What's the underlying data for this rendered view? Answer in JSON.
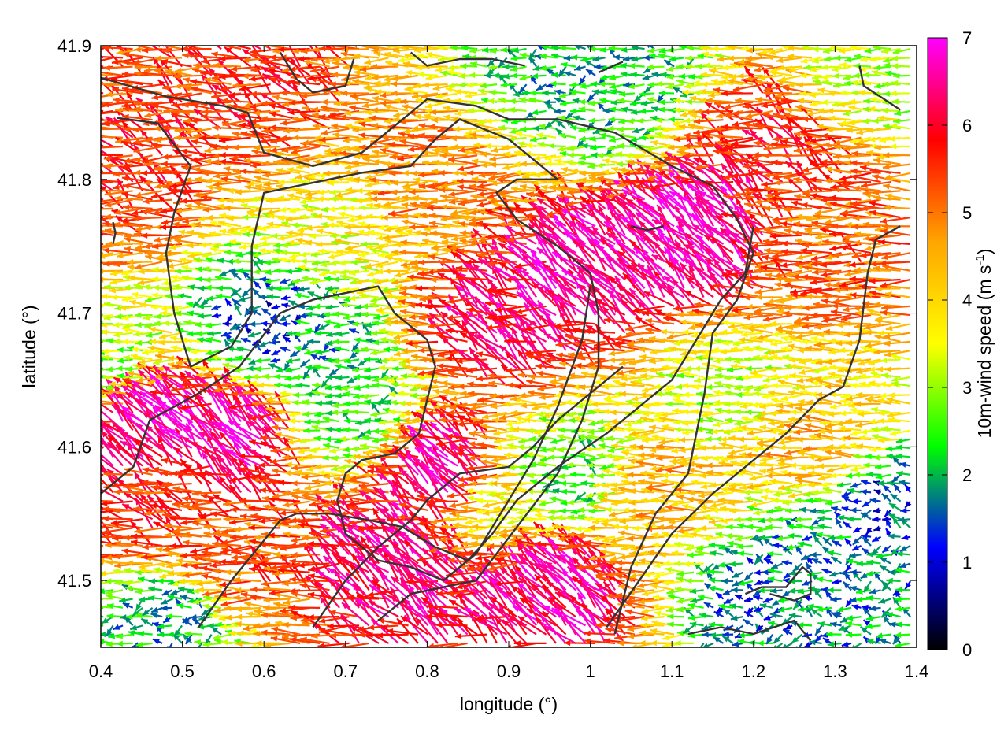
{
  "chart_data": {
    "type": "vector-field",
    "xlabel": "longitude (°)",
    "ylabel": "latitude (°)",
    "xlim": [
      0.4,
      1.4
    ],
    "ylim": [
      41.45,
      41.9
    ],
    "xticks": [
      "0.4",
      "0.5",
      "0.6",
      "0.7",
      "0.8",
      "0.9",
      "1",
      "1.1",
      "1.2",
      "1.3",
      "1.4"
    ],
    "yticks": [
      "41.5",
      "41.6",
      "41.7",
      "41.8",
      "41.9"
    ],
    "colorbar": {
      "label": "10m-wind speed (m s",
      "label_sup": "-1",
      "label_end": ")",
      "range": [
        0,
        7
      ],
      "ticks": [
        "0",
        "1",
        "2",
        "3",
        "4",
        "5",
        "6",
        "7"
      ],
      "palette": [
        "#000000",
        "#0000ff",
        "#00ff00",
        "#ffff00",
        "#ffa500",
        "#ff0000",
        "#ff00ff"
      ]
    },
    "grid": false,
    "legend": "none",
    "wind_field": {
      "prevailing_direction": "from east (vectors point west)",
      "speed_regions": [
        {
          "lon": 0.47,
          "lat": 41.62,
          "speed": 6.8
        },
        {
          "lon": 0.57,
          "lat": 41.61,
          "speed": 6.6
        },
        {
          "lon": 0.84,
          "lat": 41.58,
          "speed": 6.5
        },
        {
          "lon": 1.14,
          "lat": 41.76,
          "speed": 6.8
        },
        {
          "lon": 1.02,
          "lat": 41.73,
          "speed": 6.6
        },
        {
          "lon": 0.9,
          "lat": 41.69,
          "speed": 6.2
        },
        {
          "lon": 0.96,
          "lat": 41.49,
          "speed": 6.5
        },
        {
          "lon": 0.77,
          "lat": 41.51,
          "speed": 6.4
        },
        {
          "lon": 0.45,
          "lat": 41.8,
          "speed": 5.6
        },
        {
          "lon": 0.6,
          "lat": 41.86,
          "speed": 5.5
        },
        {
          "lon": 0.82,
          "lat": 41.8,
          "speed": 4.9
        },
        {
          "lon": 1.22,
          "lat": 41.82,
          "speed": 5.7
        },
        {
          "lon": 1.3,
          "lat": 41.76,
          "speed": 5.2
        },
        {
          "lon": 1.28,
          "lat": 41.6,
          "speed": 4.4
        },
        {
          "lon": 1.1,
          "lat": 41.57,
          "speed": 4.5
        },
        {
          "lon": 0.6,
          "lat": 41.52,
          "speed": 5.3
        },
        {
          "lon": 0.7,
          "lat": 41.76,
          "speed": 3.6
        },
        {
          "lon": 0.72,
          "lat": 41.63,
          "speed": 2.4
        },
        {
          "lon": 0.66,
          "lat": 41.68,
          "speed": 2.0
        },
        {
          "lon": 0.99,
          "lat": 41.88,
          "speed": 2.0
        },
        {
          "lon": 1.05,
          "lat": 41.86,
          "speed": 2.2
        },
        {
          "lon": 1.23,
          "lat": 41.49,
          "speed": 1.6
        },
        {
          "lon": 1.32,
          "lat": 41.52,
          "speed": 1.8
        },
        {
          "lon": 1.37,
          "lat": 41.55,
          "speed": 1.3
        },
        {
          "lon": 0.48,
          "lat": 41.47,
          "speed": 2.0
        },
        {
          "lon": 0.62,
          "lat": 41.69,
          "speed": 1.3
        },
        {
          "lon": 1.18,
          "lat": 41.64,
          "speed": 3.2
        },
        {
          "lon": 0.42,
          "lat": 41.66,
          "speed": 3.0
        },
        {
          "lon": 0.98,
          "lat": 41.58,
          "speed": 2.5
        },
        {
          "lon": 0.9,
          "lat": 41.56,
          "speed": 3.8
        },
        {
          "lon": 1.38,
          "lat": 41.88,
          "speed": 3.2
        },
        {
          "lon": 0.47,
          "lat": 41.55,
          "speed": 5.6
        }
      ]
    },
    "contours": [
      [
        [
          0.4,
          41.876
        ],
        [
          0.48,
          41.862
        ],
        [
          0.55,
          41.855
        ],
        [
          0.58,
          41.85
        ],
        [
          0.6,
          41.82
        ],
        [
          0.66,
          41.81
        ],
        [
          0.72,
          41.82
        ],
        [
          0.76,
          41.84
        ],
        [
          0.8,
          41.86
        ],
        [
          0.86,
          41.855
        ],
        [
          0.9,
          41.845
        ],
        [
          0.96,
          41.845
        ],
        [
          1.03,
          41.835
        ],
        [
          1.1,
          41.81
        ],
        [
          1.15,
          41.795
        ],
        [
          1.18,
          41.77
        ],
        [
          1.2,
          41.745
        ],
        [
          1.18,
          41.71
        ],
        [
          1.15,
          41.685
        ],
        [
          1.14,
          41.64
        ],
        [
          1.12,
          41.58
        ],
        [
          1.08,
          41.55
        ],
        [
          1.05,
          41.51
        ],
        [
          1.03,
          41.46
        ]
      ],
      [
        [
          0.42,
          41.846
        ],
        [
          0.47,
          41.842
        ],
        [
          0.51,
          41.81
        ],
        [
          0.49,
          41.775
        ],
        [
          0.48,
          41.745
        ],
        [
          0.49,
          41.7
        ],
        [
          0.51,
          41.66
        ],
        [
          0.56,
          41.675
        ],
        [
          0.585,
          41.7
        ],
        [
          0.585,
          41.75
        ],
        [
          0.6,
          41.79
        ],
        [
          0.64,
          41.795
        ],
        [
          0.72,
          41.805
        ],
        [
          0.78,
          41.81
        ],
        [
          0.81,
          41.83
        ],
        [
          0.84,
          41.845
        ],
        [
          0.9,
          41.83
        ],
        [
          0.96,
          41.8
        ],
        [
          0.91,
          41.8
        ],
        [
          0.885,
          41.79
        ],
        [
          0.91,
          41.77
        ],
        [
          0.96,
          41.75
        ],
        [
          1.0,
          41.73
        ],
        [
          1.01,
          41.7
        ],
        [
          1.01,
          41.66
        ],
        [
          0.99,
          41.62
        ],
        [
          0.96,
          41.58
        ],
        [
          0.91,
          41.54
        ],
        [
          0.86,
          41.5
        ],
        [
          0.78,
          41.49
        ],
        [
          0.74,
          41.47
        ]
      ],
      [
        [
          0.4,
          41.565
        ],
        [
          0.44,
          41.585
        ],
        [
          0.46,
          41.62
        ],
        [
          0.52,
          41.64
        ],
        [
          0.57,
          41.66
        ],
        [
          0.62,
          41.7
        ],
        [
          0.66,
          41.71
        ],
        [
          0.7,
          41.715
        ],
        [
          0.74,
          41.72
        ],
        [
          0.76,
          41.7
        ],
        [
          0.78,
          41.69
        ],
        [
          0.8,
          41.68
        ],
        [
          0.81,
          41.66
        ],
        [
          0.8,
          41.635
        ],
        [
          0.79,
          41.61
        ],
        [
          0.76,
          41.595
        ],
        [
          0.72,
          41.59
        ],
        [
          0.7,
          41.58
        ],
        [
          0.69,
          41.56
        ],
        [
          0.7,
          41.535
        ],
        [
          0.74,
          41.515
        ],
        [
          0.78,
          41.51
        ],
        [
          0.82,
          41.5
        ],
        [
          0.86,
          41.52
        ],
        [
          0.9,
          41.56
        ],
        [
          0.93,
          41.59
        ],
        [
          0.96,
          41.63
        ],
        [
          0.99,
          41.68
        ],
        [
          1.0,
          41.72
        ]
      ],
      [
        [
          0.52,
          41.465
        ],
        [
          0.56,
          41.5
        ],
        [
          0.6,
          41.53
        ],
        [
          0.62,
          41.545
        ],
        [
          0.64,
          41.55
        ],
        [
          0.68,
          41.55
        ],
        [
          0.73,
          41.545
        ],
        [
          0.77,
          41.54
        ],
        [
          0.81,
          41.525
        ],
        [
          0.85,
          41.515
        ],
        [
          0.88,
          41.535
        ],
        [
          0.91,
          41.56
        ],
        [
          0.96,
          41.585
        ],
        [
          1.02,
          41.61
        ],
        [
          1.06,
          41.63
        ],
        [
          1.1,
          41.65
        ],
        [
          1.13,
          41.68
        ],
        [
          1.16,
          41.71
        ],
        [
          1.19,
          41.73
        ],
        [
          1.2,
          41.765
        ]
      ],
      [
        [
          0.66,
          41.465
        ],
        [
          0.7,
          41.5
        ],
        [
          0.74,
          41.525
        ],
        [
          0.78,
          41.545
        ],
        [
          0.8,
          41.56
        ],
        [
          0.84,
          41.58
        ],
        [
          0.9,
          41.585
        ],
        [
          0.93,
          41.6
        ],
        [
          0.96,
          41.62
        ],
        [
          1.0,
          41.64
        ],
        [
          1.04,
          41.66
        ]
      ],
      [
        [
          1.02,
          41.465
        ],
        [
          1.06,
          41.5
        ],
        [
          1.1,
          41.535
        ],
        [
          1.15,
          41.565
        ],
        [
          1.2,
          41.59
        ],
        [
          1.24,
          41.61
        ],
        [
          1.28,
          41.635
        ],
        [
          1.31,
          41.645
        ],
        [
          1.33,
          41.68
        ],
        [
          1.34,
          41.73
        ],
        [
          1.35,
          41.755
        ],
        [
          1.38,
          41.765
        ]
      ],
      [
        [
          1.12,
          41.46
        ],
        [
          1.16,
          41.465
        ],
        [
          1.2,
          41.46
        ],
        [
          1.25,
          41.47
        ],
        [
          1.27,
          41.455
        ]
      ],
      [
        [
          1.19,
          41.49
        ],
        [
          1.21,
          41.495
        ],
        [
          1.24,
          41.495
        ],
        [
          1.26,
          41.51
        ],
        [
          1.27,
          41.505
        ],
        [
          1.27,
          41.49
        ],
        [
          1.25,
          41.485
        ],
        [
          1.22,
          41.49
        ]
      ],
      [
        [
          1.33,
          41.885
        ],
        [
          1.335,
          41.87
        ],
        [
          1.36,
          41.86
        ],
        [
          1.38,
          41.852
        ]
      ],
      [
        [
          0.62,
          41.895
        ],
        [
          0.64,
          41.875
        ],
        [
          0.66,
          41.865
        ],
        [
          0.7,
          41.87
        ],
        [
          0.71,
          41.89
        ]
      ],
      [
        [
          0.78,
          41.895
        ],
        [
          0.8,
          41.885
        ],
        [
          0.84,
          41.89
        ],
        [
          0.88,
          41.89
        ],
        [
          0.92,
          41.885
        ]
      ],
      [
        [
          1.01,
          41.88
        ],
        [
          1.04,
          41.888
        ]
      ],
      [
        [
          0.415,
          41.768
        ],
        [
          0.418,
          41.76
        ],
        [
          0.415,
          41.752
        ]
      ],
      [
        [
          1.05,
          41.765
        ],
        [
          1.07,
          41.762
        ],
        [
          1.09,
          41.765
        ]
      ]
    ]
  }
}
